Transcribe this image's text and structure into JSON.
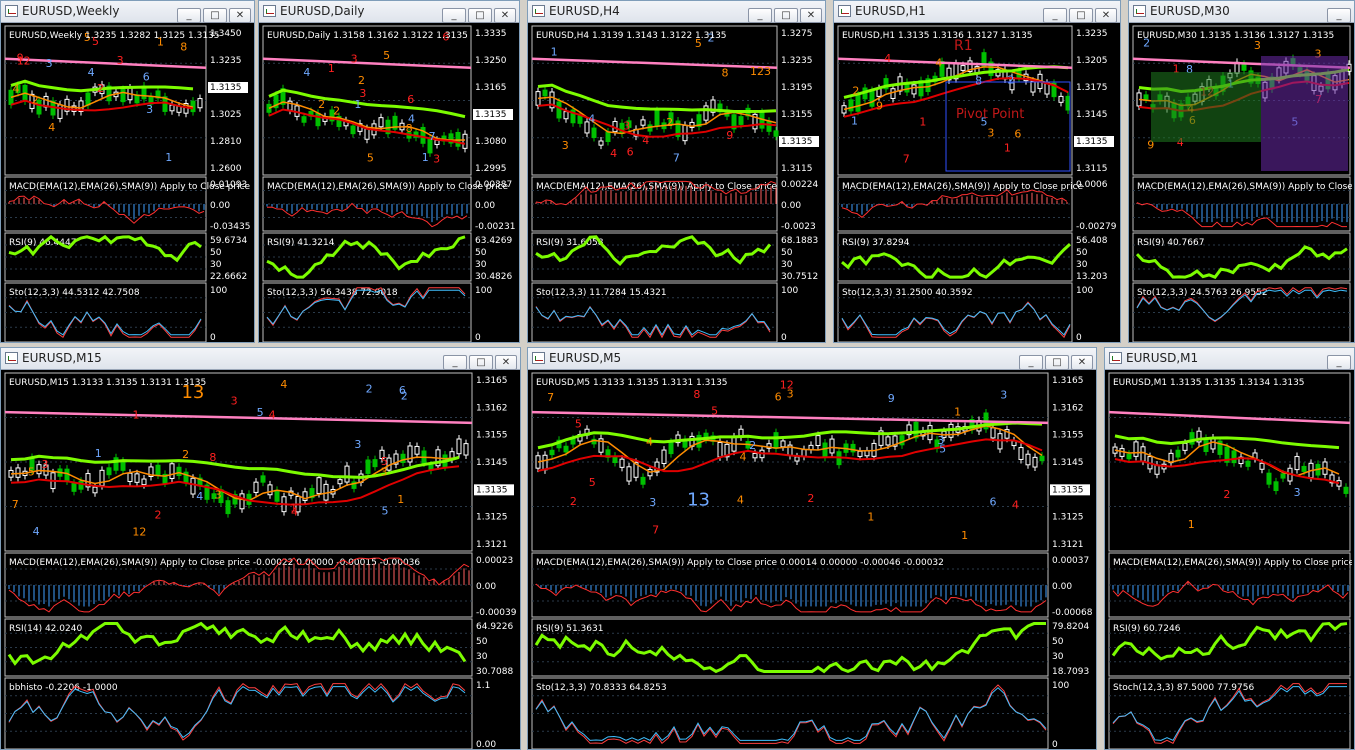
{
  "windows": [
    {
      "title": "EURUSD,Weekly",
      "header": "EURUSD,Weekly 1.3235 1.3282 1.3125 1.3135",
      "axis_main": [
        "1.3450",
        "1.3235",
        "1.3135",
        "1.3025",
        "1.2810",
        "1.2600"
      ],
      "price_tag": "1.3135",
      "macd_label": "MACD(EMA(12),EMA(26),SMA(9)) Apply to Close price",
      "macd_axis": [
        "0.01093",
        "0.00",
        "-0.03435"
      ],
      "rsi_label": "RSI(9) 46.4447",
      "rsi_axis": [
        "59.6734",
        "50",
        "30",
        "22.6662"
      ],
      "sto_label": "Sto(12,3,3) 44.5312 42.7508",
      "sto_axis": [
        "100",
        "0"
      ],
      "counts": [
        "4",
        "5",
        "6",
        "8",
        "9",
        "1",
        "2",
        "3",
        "4",
        "1",
        "2",
        "3",
        "5",
        "12",
        "3",
        "4"
      ]
    },
    {
      "title": "EURUSD,Daily",
      "header": "EURUSD,Daily 1.3158 1.3162 1.3122 1.3135",
      "axis_main": [
        "1.3335",
        "1.3250",
        "1.3165",
        "1.3135",
        "1.3080",
        "1.2995"
      ],
      "price_tag": "1.3135",
      "macd_label": "MACD(EMA(12),EMA(26),SMA(9)) Apply to Close price",
      "macd_axis": [
        "0.00387",
        "0.00",
        "-0.00231"
      ],
      "rsi_label": "RSI(9) 41.3214",
      "rsi_axis": [
        "63.4269",
        "50",
        "30",
        "30.4826"
      ],
      "sto_label": "Sto(12,3,3) 56.3438 72.9018",
      "sto_axis": [
        "100",
        "0"
      ],
      "counts": [
        "2",
        "3",
        "4",
        "5",
        "6",
        "1",
        "2",
        "3",
        "1",
        "2",
        "3",
        "4",
        "5",
        "6",
        "7",
        "8",
        "1"
      ]
    },
    {
      "title": "EURUSD,H4",
      "header": "EURUSD,H4 1.3139 1.3143 1.3122 1.3135",
      "axis_main": [
        "1.3275",
        "1.3235",
        "1.3195",
        "1.3155",
        "1.3135",
        "1.3115"
      ],
      "price_tag": "1.3135",
      "macd_label": "MACD(EMA(12),EMA(26),SMA(9)) Apply to Close price",
      "macd_axis": [
        "0.00224",
        "0.00",
        "-0.0023"
      ],
      "rsi_label": "RSI(9) 31.6058",
      "rsi_axis": [
        "68.1883",
        "50",
        "30",
        "30.7512"
      ],
      "sto_label": "Sto(12,3,3) 11.7284 15.4321",
      "sto_axis": [
        "100",
        "0"
      ],
      "counts": [
        "123",
        "4",
        "2",
        "3",
        "4",
        "1",
        "2",
        "3",
        "4",
        "5",
        "6",
        "7",
        "8",
        "9"
      ]
    },
    {
      "title": "EURUSD,H1",
      "header": "EURUSD,H1 1.3135 1.3136 1.3127 1.3135",
      "axis_main": [
        "1.3235",
        "1.3205",
        "1.3175",
        "1.3145",
        "1.3135",
        "1.3115"
      ],
      "price_tag": "1.3135",
      "zone_labels": [
        "R1",
        "Pivot Point"
      ],
      "macd_label": "MACD(EMA(12),EMA(26),SMA(9)) Apply to Close price",
      "macd_axis": [
        "0.0006",
        "-0.00279"
      ],
      "rsi_label": "RSI(9) 37.8294",
      "rsi_axis": [
        "56.408",
        "50",
        "30",
        "13.203"
      ],
      "sto_label": "Sto(12,3,3) 31.2500 40.3592",
      "sto_axis": [
        "100",
        "0"
      ],
      "counts": [
        "4",
        "1",
        "2",
        "3",
        "4",
        "5",
        "6",
        "7",
        "8",
        "9",
        "1",
        "1",
        "2"
      ]
    },
    {
      "title": "EURUSD,M30",
      "header": "EURUSD,M30 1.3135 1.3136 1.3127 1.3135",
      "axis_main": [],
      "price_tag": "",
      "macd_label": "MACD(EMA(12),EMA(26),SMA(9)) Apply to Close",
      "macd_axis": [],
      "rsi_label": "RSI(9) 40.7667",
      "rsi_axis": [],
      "sto_label": "Sto(12,3,3) 24.5763 26.9552",
      "sto_axis": [],
      "counts": [
        "3",
        "4",
        "5",
        "6",
        "7",
        "8",
        "9",
        "1",
        "2",
        "3",
        "12",
        "1",
        "4"
      ]
    },
    {
      "title": "EURUSD,M15",
      "header": "EURUSD,M15 1.3133 1.3135 1.3131 1.3135",
      "axis_main": [
        "1.3165",
        "1.3162",
        "1.3155",
        "1.3145",
        "1.3135",
        "1.3125",
        "1.3121"
      ],
      "price_tag": "1.3135",
      "macd_label": "MACD(EMA(12),EMA(26),SMA(9)) Apply to Close price -0.00022 0.00000 -0.00015 -0.00036",
      "macd_axis": [
        "0.00023",
        "0.00",
        "-0.00039"
      ],
      "rsi_label": "RSI(14) 42.0240",
      "rsi_axis": [
        "64.9226",
        "50",
        "30",
        "30.7088"
      ],
      "sto_label": "bbhisto -0.2206 -1.0000",
      "sto_axis": [
        "1.1",
        "0.00"
      ],
      "counts": [
        "13",
        "1",
        "2",
        "3",
        "4",
        "5",
        "12",
        "3",
        "4",
        "5",
        "1",
        "2",
        "3",
        "4",
        "5",
        "1",
        "2",
        "3",
        "4",
        "5",
        "6",
        "7",
        "8",
        "1",
        "2",
        "3",
        "4"
      ]
    },
    {
      "title": "EURUSD,M5",
      "header": "EURUSD,M5 1.3133 1.3135 1.3131 1.3135",
      "axis_main": [
        "1.3165",
        "1.3162",
        "1.3155",
        "1.3145",
        "1.3135",
        "1.3125",
        "1.3121"
      ],
      "price_tag": "1.3135",
      "macd_label": "MACD(EMA(12),EMA(26),SMA(9)) Apply to Close price 0.00014 0.00000 -0.00046 -0.00032",
      "macd_axis": [
        "0.00037",
        "0.00",
        "-0.00068"
      ],
      "rsi_label": "RSI(9) 51.3631",
      "rsi_axis": [
        "79.8204",
        "50",
        "30",
        "18.7093"
      ],
      "sto_label": "Sto(12,3,3) 70.8333 64.8253",
      "sto_axis": [
        "100",
        "0"
      ],
      "counts": [
        "1",
        "2",
        "3",
        "4",
        "5",
        "2",
        "3",
        "4",
        "5",
        "6",
        "7",
        "13",
        "1",
        "12",
        "3",
        "4",
        "5",
        "6",
        "7",
        "8",
        "9",
        "1",
        "2",
        "3",
        "4",
        "5"
      ]
    },
    {
      "title": "EURUSD,M1",
      "header": "EURUSD,M1 1.3135 1.3135 1.3134 1.3135",
      "axis_main": [],
      "price_tag": "",
      "macd_label": "MACD(EMA(12),EMA(26),SMA(9)) Apply to Close price",
      "macd_axis": [],
      "rsi_label": "RSI(9) 60.7246",
      "rsi_axis": [],
      "sto_label": "Stoch(12,3,3) 87.5000 77.9756",
      "sto_axis": [],
      "counts": [
        "1",
        "2",
        "3"
      ]
    }
  ],
  "colors": {
    "bull": "#ffffff",
    "bear": "#00c000",
    "macd_ema": "#ff8c00",
    "red_ma": "#e00000",
    "lime_ma": "#7cfc00",
    "pink_ma": "#ff80c0",
    "count_orange": "#ff8c00",
    "count_red": "#ff2020",
    "count_blue": "#6fa8ff",
    "price_tag": "#ffffff",
    "level_tag": "#ffd700"
  }
}
